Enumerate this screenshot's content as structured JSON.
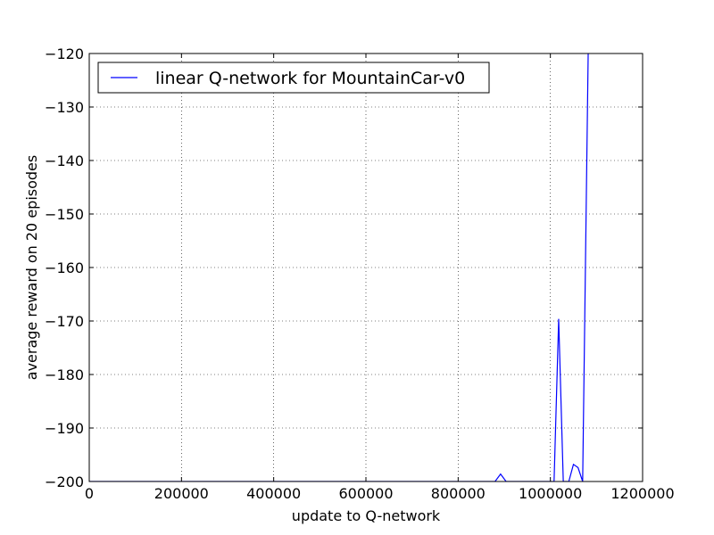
{
  "chart_data": {
    "type": "line",
    "title": "",
    "xlabel": "update to Q-network",
    "ylabel": "average reward on 20 episodes",
    "xlim": [
      0,
      1200000
    ],
    "ylim": [
      -200,
      -120
    ],
    "x_ticks": [
      0,
      200000,
      400000,
      600000,
      800000,
      1000000,
      1200000
    ],
    "x_tick_labels": [
      "0",
      "200000",
      "400000",
      "600000",
      "800000",
      "1000000",
      "1200000"
    ],
    "y_ticks": [
      -120,
      -130,
      -140,
      -150,
      -160,
      -170,
      -180,
      -190,
      -200
    ],
    "y_tick_labels": [
      "−120",
      "−130",
      "−140",
      "−150",
      "−160",
      "−170",
      "−180",
      "−190",
      "−200"
    ],
    "grid": true,
    "legend_position": "top-left",
    "series": [
      {
        "name": "linear Q-network for MountainCar-v0",
        "color": "#0000ff",
        "x": [
          0,
          880000,
          892000,
          904000,
          1008000,
          1018000,
          1028000,
          1040000,
          1050000,
          1060000,
          1070000,
          1082000
        ],
        "y": [
          -200,
          -200,
          -198.6,
          -200,
          -200,
          -169.6,
          -200,
          -200,
          -196.8,
          -197.4,
          -200,
          -120
        ]
      }
    ]
  }
}
